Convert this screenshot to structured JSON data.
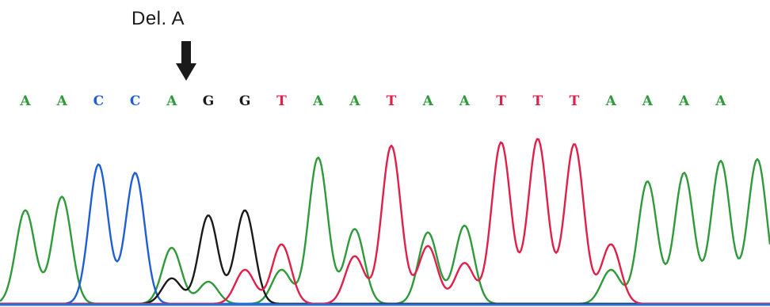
{
  "annotation": {
    "label": "Del. A",
    "arrow_icon": "down-arrow-icon"
  },
  "colors": {
    "A": "#2e9a3a",
    "C": "#1f5fd6",
    "G": "#1a1a1a",
    "T": "#e0204a",
    "baseline": "#2f6fd0"
  },
  "sequence": [
    "A",
    "A",
    "C",
    "C",
    "A",
    "G",
    "G",
    "T",
    "A",
    "A",
    "T",
    "A",
    "A",
    "T",
    "T",
    "T",
    "A",
    "A",
    "A",
    "A"
  ],
  "chart_data": {
    "type": "line",
    "title": "",
    "xlabel": "",
    "ylabel": "",
    "positions": [
      1,
      2,
      3,
      4,
      5,
      6,
      7,
      8,
      9,
      10,
      11,
      12,
      13,
      14,
      15,
      16,
      17,
      18,
      19,
      20
    ],
    "called_bases": [
      "A",
      "A",
      "C",
      "C",
      "A",
      "G",
      "G",
      "T",
      "A",
      "A",
      "T",
      "A",
      "A",
      "T",
      "T",
      "T",
      "A",
      "A",
      "A",
      "A"
    ],
    "ylim": [
      0,
      1
    ],
    "series": [
      {
        "channel": "A",
        "peaks": [
          [
            1,
            0.55
          ],
          [
            2,
            0.63
          ],
          [
            5,
            0.33
          ],
          [
            6,
            0.13
          ],
          [
            8,
            0.2
          ],
          [
            9,
            0.86
          ],
          [
            10,
            0.44
          ],
          [
            12,
            0.42
          ],
          [
            13,
            0.46
          ],
          [
            17,
            0.2
          ],
          [
            18,
            0.72
          ],
          [
            19,
            0.77
          ],
          [
            20,
            0.84
          ],
          [
            21,
            0.85
          ]
        ]
      },
      {
        "channel": "C",
        "peaks": [
          [
            3,
            0.82
          ],
          [
            4,
            0.77
          ]
        ]
      },
      {
        "channel": "G",
        "peaks": [
          [
            5,
            0.15
          ],
          [
            6,
            0.52
          ],
          [
            7,
            0.55
          ]
        ]
      },
      {
        "channel": "T",
        "peaks": [
          [
            7,
            0.2
          ],
          [
            8,
            0.35
          ],
          [
            10,
            0.28
          ],
          [
            11,
            0.93
          ],
          [
            12,
            0.34
          ],
          [
            13,
            0.24
          ],
          [
            14,
            0.95
          ],
          [
            15,
            0.97
          ],
          [
            16,
            0.94
          ],
          [
            17,
            0.35
          ]
        ]
      }
    ]
  }
}
